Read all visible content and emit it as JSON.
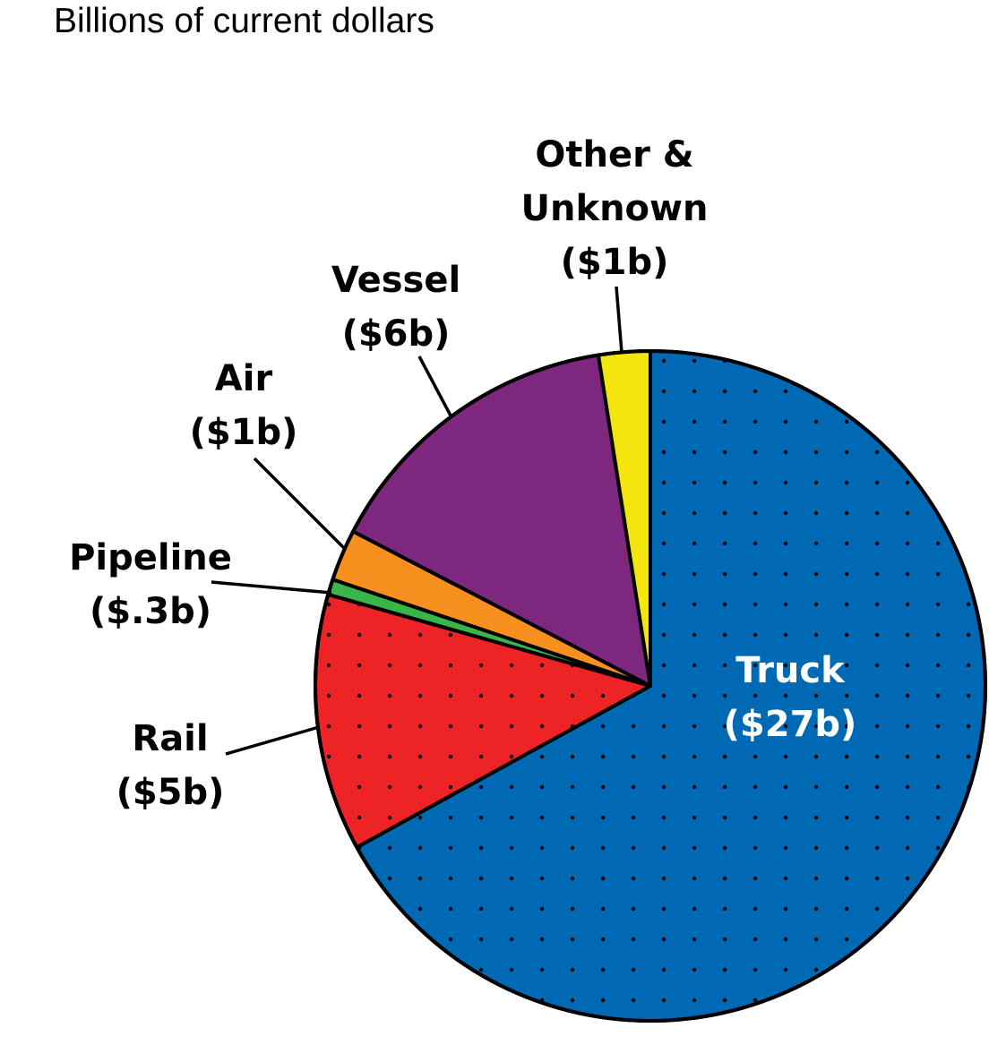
{
  "chart_data": {
    "type": "pie",
    "subtitle": "Billions of current dollars",
    "colors": {
      "truck": "#0069B4",
      "rail": "#EE2326",
      "pipeline": "#3AB54A",
      "air": "#F7901E",
      "vessel": "#7E277E",
      "other": "#F5E50F",
      "label_dark": "#000000",
      "label_light": "#ffffff",
      "outline": "#000000",
      "dot": "#000000"
    },
    "slices": [
      {
        "key": "truck",
        "name": "Truck",
        "value_label": "($27b)",
        "value": 27
      },
      {
        "key": "rail",
        "name": "Rail",
        "value_label": "($5b)",
        "value": 5
      },
      {
        "key": "pipeline",
        "name": "Pipeline",
        "value_label": "($.3b)",
        "value": 0.3
      },
      {
        "key": "air",
        "name": "Air",
        "value_label": "($1b)",
        "value": 1
      },
      {
        "key": "vessel",
        "name": "Vessel",
        "value_label": "($6b)",
        "value": 6
      },
      {
        "key": "other",
        "name": "Other &",
        "name_line2": "Unknown",
        "value_label": "($1b)",
        "value": 1
      }
    ]
  }
}
